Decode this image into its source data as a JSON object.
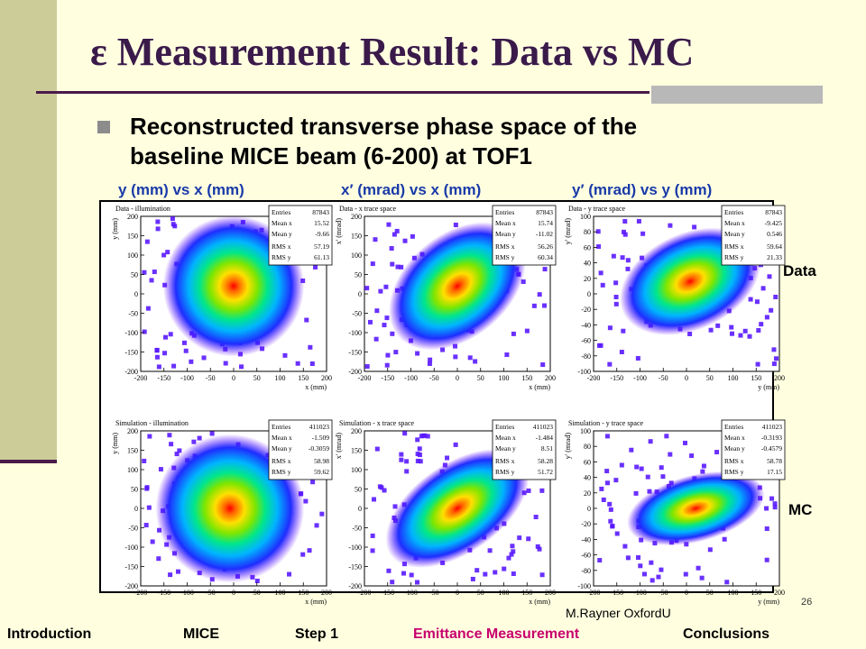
{
  "slide": {
    "title": "ε Measurement Result: Data vs MC",
    "bullet_line1": "Reconstructed transverse phase space of the",
    "bullet_line2": "baseline MICE beam (6-200) at TOF1",
    "column_headers": [
      "y (mm) vs x (mm)",
      "x′ (mrad) vs x (mm)",
      "y′ (mrad) vs y (mm)"
    ],
    "row_labels": {
      "data": "Data",
      "mc": "MC"
    },
    "page_number": "26",
    "author": "M.Rayner OxfordU",
    "nav": {
      "items": [
        "Introduction",
        "MICE",
        "Step 1",
        "Emittance Measurement",
        "Conclusions"
      ],
      "active": "Emittance Measurement"
    },
    "colors": {
      "title": "#3a1a4a",
      "header": "#1a3aa8",
      "nav_active": "#c8006e",
      "plot_bg": "#5a1aff"
    }
  },
  "chart_data": [
    {
      "type": "heatmap",
      "title": "Data - illumination",
      "xlabel": "x (mm)",
      "ylabel": "y (mm)",
      "xlim": [
        -200,
        200
      ],
      "ylim": [
        -200,
        200
      ],
      "xticks": [
        "-200",
        "-150",
        "-100",
        "-50",
        "0",
        "50",
        "100",
        "150",
        "200"
      ],
      "yticks": [
        "-200",
        "-150",
        "-100",
        "-50",
        "0",
        "50",
        "100",
        "150",
        "200"
      ],
      "stats": [
        [
          "Entries",
          "87843"
        ],
        [
          "Mean x",
          "15.52"
        ],
        [
          "Mean y",
          "-9.66"
        ],
        [
          "RMS x",
          "57.19"
        ],
        [
          "RMS y",
          "61.13"
        ]
      ]
    },
    {
      "type": "heatmap",
      "title": "Data - x trace space",
      "xlabel": "x (mm)",
      "ylabel": "x' (mrad)",
      "xlim": [
        -200,
        200
      ],
      "ylim": [
        -200,
        200
      ],
      "xticks": [
        "-200",
        "-150",
        "-100",
        "-50",
        "0",
        "50",
        "100",
        "150",
        "200"
      ],
      "yticks": [
        "-200",
        "-150",
        "-100",
        "-50",
        "0",
        "50",
        "100",
        "150",
        "200"
      ],
      "stats": [
        [
          "Entries",
          "87843"
        ],
        [
          "Mean x",
          "15.74"
        ],
        [
          "Mean y",
          "-11.02"
        ],
        [
          "RMS x",
          "56.26"
        ],
        [
          "RMS y",
          "60.34"
        ]
      ]
    },
    {
      "type": "heatmap",
      "title": "Data - y trace space",
      "xlabel": "y (mm)",
      "ylabel": "y' (mrad)",
      "xlim": [
        -200,
        200
      ],
      "ylim": [
        -100,
        100
      ],
      "xticks": [
        "-200",
        "-150",
        "-100",
        "-50",
        "0",
        "50",
        "100",
        "150",
        "200"
      ],
      "yticks": [
        "-100",
        "-80",
        "-60",
        "-40",
        "-20",
        "0",
        "20",
        "40",
        "60",
        "80",
        "100"
      ],
      "stats": [
        [
          "Entries",
          "87843"
        ],
        [
          "Mean x",
          "-9.425"
        ],
        [
          "Mean y",
          "0.546"
        ],
        [
          "RMS x",
          "59.64"
        ],
        [
          "RMS y",
          "21.33"
        ]
      ]
    },
    {
      "type": "heatmap",
      "title": "Simulation - illumination",
      "xlabel": "x (mm)",
      "ylabel": "y (mm)",
      "xlim": [
        -200,
        200
      ],
      "ylim": [
        -200,
        200
      ],
      "xticks": [
        "-200",
        "-150",
        "-100",
        "-50",
        "0",
        "50",
        "100",
        "150",
        "200"
      ],
      "yticks": [
        "-200",
        "-150",
        "-100",
        "-50",
        "0",
        "50",
        "100",
        "150",
        "200"
      ],
      "stats": [
        [
          "Entries",
          "411023"
        ],
        [
          "Mean x",
          "-1.509"
        ],
        [
          "Mean y",
          "-0.3059"
        ],
        [
          "RMS x",
          "58.98"
        ],
        [
          "RMS y",
          "59.62"
        ]
      ]
    },
    {
      "type": "heatmap",
      "title": "Simulation - x trace space",
      "xlabel": "x (mm)",
      "ylabel": "x' (mrad)",
      "xlim": [
        -200,
        200
      ],
      "ylim": [
        -200,
        200
      ],
      "xticks": [
        "-200",
        "-150",
        "-100",
        "-50",
        "0",
        "50",
        "100",
        "150",
        "200"
      ],
      "yticks": [
        "-200",
        "-150",
        "-100",
        "-50",
        "0",
        "50",
        "100",
        "150",
        "200"
      ],
      "stats": [
        [
          "Entries",
          "411023"
        ],
        [
          "Mean x",
          "-1.484"
        ],
        [
          "Mean y",
          "8.51"
        ],
        [
          "RMS x",
          "58.28"
        ],
        [
          "RMS y",
          "51.72"
        ]
      ]
    },
    {
      "type": "heatmap",
      "title": "Simulation - y trace space",
      "xlabel": "y (mm)",
      "ylabel": "y' (mrad)",
      "xlim": [
        -200,
        200
      ],
      "ylim": [
        -100,
        100
      ],
      "xticks": [
        "-200",
        "-150",
        "-100",
        "-50",
        "0",
        "50",
        "100",
        "150",
        "200"
      ],
      "yticks": [
        "-100",
        "-80",
        "-60",
        "-40",
        "-20",
        "0",
        "20",
        "40",
        "60",
        "80",
        "100"
      ],
      "stats": [
        [
          "Entries",
          "411023"
        ],
        [
          "Mean x",
          "-0.3193"
        ],
        [
          "Mean y",
          "-0.4579"
        ],
        [
          "RMS x",
          "58.78"
        ],
        [
          "RMS y",
          "17.15"
        ]
      ]
    }
  ]
}
